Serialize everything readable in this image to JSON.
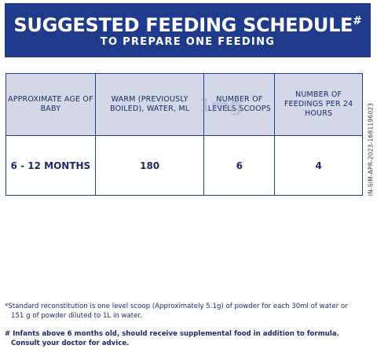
{
  "header": {
    "title": "SUGGESTED FEEDING SCHEDULE",
    "title_mark": "#",
    "subtitle": "TO PREPARE ONE FEEDING"
  },
  "table": {
    "headers": [
      "APPROXIMATE AGE OF BABY",
      "WARM (PREVIOUSLY BOILED), WATER, ML",
      "NUMBER OF LEVELS SCOOPS",
      "NUMBER OF FEEDINGS PER 24 HOURS"
    ],
    "rows": [
      [
        "6 - 12 MONTHS",
        "180",
        "6",
        "4"
      ]
    ]
  },
  "watermark": "1mg",
  "side_code": "IN-SIM-APR-2023-1681196023",
  "notes": {
    "standard": "*Standard reconstitution is one level scoop (Approximately 5.1g) of powder for each 30ml of water or 151 g of powder diluted to 1L in water.",
    "infants": "# Infants above 6 months old, should receive supplemental food in addition to formula. Consult your doctor for advice."
  },
  "colors": {
    "brand_blue": "#203a8c",
    "header_cell_bg": "#d3d7e7"
  }
}
